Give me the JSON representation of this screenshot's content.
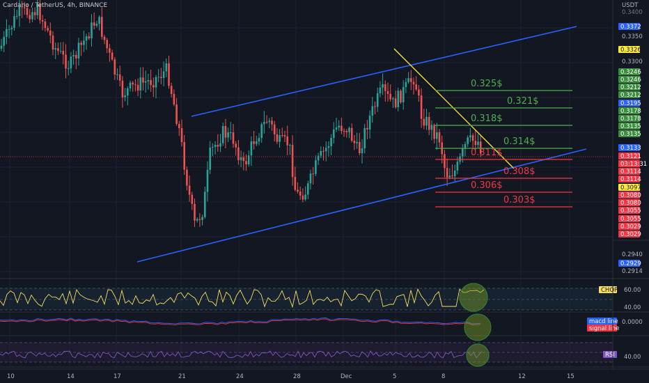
{
  "header": {
    "symbol": "Cardano / TetherUS",
    "interval": "4h",
    "exchange": "BINANCE",
    "currency": "USDT"
  },
  "colors": {
    "bg": "#131722",
    "up": "#26a69a",
    "down": "#ef5350",
    "channel": "#2962ff",
    "trend": "#ffeb3b",
    "res": "#4caf50",
    "sup": "#f23645",
    "chop": "#f9e05a",
    "macd": "#2962ff",
    "signal": "#f23645",
    "rsi": "#7e57c2",
    "marker": "#2e7d32"
  },
  "price_axis": {
    "ticks": [
      "0.3350",
      "0.3300",
      "0.2940",
      "0.2914"
    ],
    "top_label": "0.3400",
    "tags": [
      {
        "text": "0.3372",
        "bg": "#2962ff",
        "fg": "#ffffff"
      },
      {
        "text": "0.3326",
        "bg": "#ffeb3b",
        "fg": "#131722"
      },
      {
        "text": "0.3246",
        "bg": "#388e3c",
        "fg": "#ffffff"
      },
      {
        "text": "0.3246",
        "bg": "#388e3c",
        "fg": "#ffffff"
      },
      {
        "text": "0.3212",
        "bg": "#388e3c",
        "fg": "#ffffff"
      },
      {
        "text": "0.3212",
        "bg": "#388e3c",
        "fg": "#ffffff"
      },
      {
        "text": "0.3195",
        "bg": "#2962ff",
        "fg": "#ffffff"
      },
      {
        "text": "0.3178",
        "bg": "#388e3c",
        "fg": "#ffffff"
      },
      {
        "text": "0.3178",
        "bg": "#388e3c",
        "fg": "#ffffff"
      },
      {
        "text": "0.3135",
        "bg": "#388e3c",
        "fg": "#ffffff"
      },
      {
        "text": "0.3135",
        "bg": "#388e3c",
        "fg": "#ffffff"
      },
      {
        "text": "0.3133",
        "bg": "#2962ff",
        "fg": "#ffffff"
      },
      {
        "text": "0.3121",
        "bg": "#f23645",
        "fg": "#ffffff"
      },
      {
        "text": "03:13:31",
        "bg": "#f23645",
        "fg": "#ffffff"
      },
      {
        "text": "0.3114",
        "bg": "#f23645",
        "fg": "#ffffff"
      },
      {
        "text": "0.3114",
        "bg": "#f23645",
        "fg": "#ffffff"
      },
      {
        "text": "0.3097",
        "bg": "#ffeb3b",
        "fg": "#131722"
      },
      {
        "text": "0.3080",
        "bg": "#f23645",
        "fg": "#ffffff"
      },
      {
        "text": "0.3080",
        "bg": "#f23645",
        "fg": "#ffffff"
      },
      {
        "text": "0.3055",
        "bg": "#f23645",
        "fg": "#ffffff"
      },
      {
        "text": "0.3055",
        "bg": "#f23645",
        "fg": "#ffffff"
      },
      {
        "text": "0.3029",
        "bg": "#f23645",
        "fg": "#ffffff"
      },
      {
        "text": "0.3029",
        "bg": "#f23645",
        "fg": "#ffffff"
      },
      {
        "text": "0.2929",
        "bg": "#2962ff",
        "fg": "#ffffff"
      }
    ]
  },
  "indicators": {
    "chop": {
      "label": "CHOP",
      "ticks": [
        "60.00",
        "40.00"
      ]
    },
    "macd": {
      "macd_label": "macd line",
      "signal_label": "signal line",
      "tick": "0.0000"
    },
    "rsi": {
      "label": "RSI",
      "tick": "40.00"
    }
  },
  "chart_data": {
    "type": "candlestick",
    "title": "Cardano / TetherUS, 4h, BINANCE",
    "x_tick_labels": [
      "10",
      "14",
      "17",
      "21",
      "24",
      "28",
      "Dec",
      "5",
      "8",
      "12",
      "15"
    ],
    "y_unit": "USDT",
    "levels": [
      {
        "label": "0.325$",
        "kind": "resistance",
        "value": 0.3246
      },
      {
        "label": "0.321$",
        "kind": "resistance",
        "value": 0.3212
      },
      {
        "label": "0.318$",
        "kind": "resistance",
        "value": 0.3178
      },
      {
        "label": "0.314$",
        "kind": "resistance",
        "value": 0.3135
      },
      {
        "label": "0.311$",
        "kind": "support",
        "value": 0.3114
      },
      {
        "label": "0.308$",
        "kind": "support",
        "value": 0.308
      },
      {
        "label": "0.306$",
        "kind": "support",
        "value": 0.3055
      },
      {
        "label": "0.303$",
        "kind": "support",
        "value": 0.3029
      }
    ],
    "last_price": 0.3121,
    "countdown": "03:13:31"
  }
}
